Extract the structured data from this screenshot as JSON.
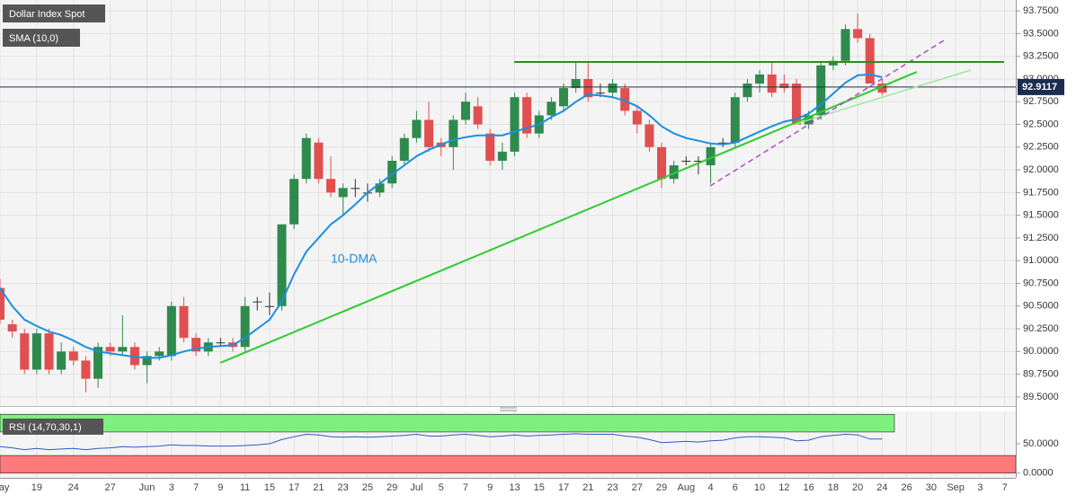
{
  "chart_data": [
    {
      "type": "candlestick",
      "categories": [
        "May",
        null,
        null,
        "19",
        null,
        null,
        "24",
        null,
        null,
        "27",
        null,
        null,
        "Jun",
        null,
        "3",
        null,
        "7",
        null,
        "9",
        null,
        "11",
        null,
        "15",
        null,
        "17",
        null,
        "21",
        null,
        "23",
        null,
        "25",
        null,
        "29",
        null,
        "Jul",
        null,
        "5",
        null,
        "7",
        null,
        "9",
        null,
        "13",
        null,
        "15",
        null,
        "17",
        null,
        "21",
        null,
        "23",
        null,
        "27",
        null,
        "29",
        null,
        "Aug",
        null,
        "4",
        null,
        "6",
        null,
        "10",
        null,
        "12",
        null,
        "16",
        null,
        "18",
        null,
        "20",
        null,
        "24",
        null,
        "26",
        null,
        "30",
        null,
        "Sep",
        null,
        "3",
        null,
        "7"
      ],
      "series": [
        {
          "name": "Dollar Index Spot",
          "up_color": "#2f8a4e",
          "down_color": "#e05050",
          "ohlc": [
            [
              90.7,
              90.8,
              90.3,
              90.35
            ],
            [
              90.3,
              90.35,
              90.15,
              90.22
            ],
            [
              90.2,
              90.25,
              89.75,
              89.8
            ],
            [
              89.8,
              90.25,
              89.75,
              90.2
            ],
            [
              90.2,
              90.25,
              89.75,
              89.8
            ],
            [
              89.8,
              90.1,
              89.75,
              90.0
            ],
            [
              90.0,
              90.05,
              89.85,
              89.9
            ],
            [
              89.9,
              89.95,
              89.55,
              89.7
            ],
            [
              89.7,
              90.1,
              89.6,
              90.05
            ],
            [
              90.05,
              90.1,
              89.95,
              90.0
            ],
            [
              90.0,
              90.4,
              89.95,
              90.05
            ],
            [
              90.05,
              90.1,
              89.8,
              89.85
            ],
            [
              89.85,
              90.0,
              89.65,
              89.95
            ],
            [
              89.95,
              90.05,
              89.9,
              90.0
            ],
            [
              89.95,
              90.55,
              89.9,
              90.5
            ],
            [
              90.5,
              90.6,
              90.1,
              90.15
            ],
            [
              90.15,
              90.2,
              89.95,
              90.0
            ],
            [
              90.0,
              90.15,
              89.95,
              90.1
            ],
            [
              90.1,
              90.15,
              90.05,
              90.1
            ],
            [
              90.1,
              90.15,
              90.0,
              90.05
            ],
            [
              90.05,
              90.6,
              90.0,
              90.5
            ],
            [
              90.55,
              90.6,
              90.45,
              90.55
            ],
            [
              90.5,
              90.65,
              90.4,
              90.5
            ],
            [
              90.5,
              91.4,
              90.45,
              91.4
            ],
            [
              91.4,
              91.95,
              91.35,
              91.9
            ],
            [
              91.9,
              92.4,
              91.85,
              92.35
            ],
            [
              92.3,
              92.35,
              91.85,
              91.9
            ],
            [
              91.9,
              92.15,
              91.7,
              91.75
            ],
            [
              91.7,
              91.85,
              91.5,
              91.8
            ],
            [
              91.8,
              91.9,
              91.7,
              91.8
            ],
            [
              91.75,
              91.85,
              91.65,
              91.75
            ],
            [
              91.75,
              91.9,
              91.7,
              91.85
            ],
            [
              91.85,
              92.15,
              91.8,
              92.1
            ],
            [
              92.1,
              92.4,
              92.05,
              92.35
            ],
            [
              92.35,
              92.65,
              92.3,
              92.55
            ],
            [
              92.55,
              92.75,
              92.2,
              92.25
            ],
            [
              92.3,
              92.35,
              92.15,
              92.25
            ],
            [
              92.25,
              92.6,
              92.0,
              92.55
            ],
            [
              92.55,
              92.85,
              92.5,
              92.75
            ],
            [
              92.7,
              92.8,
              92.45,
              92.5
            ],
            [
              92.4,
              92.45,
              92.05,
              92.1
            ],
            [
              92.1,
              92.3,
              92.0,
              92.2
            ],
            [
              92.2,
              92.85,
              92.15,
              92.8
            ],
            [
              92.8,
              92.85,
              92.35,
              92.4
            ],
            [
              92.4,
              92.65,
              92.35,
              92.6
            ],
            [
              92.6,
              92.8,
              92.55,
              92.75
            ],
            [
              92.7,
              92.95,
              92.65,
              92.9
            ],
            [
              92.9,
              93.18,
              92.85,
              93.0
            ],
            [
              93.0,
              93.18,
              92.75,
              92.8
            ],
            [
              92.85,
              92.95,
              92.8,
              92.85
            ],
            [
              92.85,
              93.0,
              92.8,
              92.95
            ],
            [
              92.9,
              92.95,
              92.6,
              92.65
            ],
            [
              92.65,
              92.7,
              92.4,
              92.5
            ],
            [
              92.5,
              92.55,
              92.2,
              92.25
            ],
            [
              92.25,
              92.3,
              91.8,
              91.9
            ],
            [
              91.9,
              92.1,
              91.85,
              92.05
            ],
            [
              92.1,
              92.15,
              92.05,
              92.1
            ],
            [
              92.1,
              92.15,
              91.95,
              92.1
            ],
            [
              92.05,
              92.3,
              91.85,
              92.25
            ],
            [
              92.3,
              92.35,
              92.25,
              92.3
            ],
            [
              92.3,
              92.85,
              92.25,
              92.8
            ],
            [
              92.8,
              93.0,
              92.75,
              92.95
            ],
            [
              92.95,
              93.1,
              92.85,
              93.05
            ],
            [
              93.05,
              93.18,
              92.8,
              92.85
            ],
            [
              92.95,
              93.05,
              92.85,
              92.9
            ],
            [
              92.95,
              93.0,
              92.5,
              92.5
            ],
            [
              92.5,
              92.65,
              92.45,
              92.6
            ],
            [
              92.6,
              93.2,
              92.55,
              93.15
            ],
            [
              93.15,
              93.25,
              93.1,
              93.2
            ],
            [
              93.2,
              93.6,
              93.15,
              93.55
            ],
            [
              93.55,
              93.72,
              93.4,
              93.45
            ],
            [
              93.45,
              93.5,
              92.95,
              92.95
            ],
            [
              92.95,
              93.0,
              92.82,
              92.85
            ],
            null,
            null,
            null,
            null,
            null,
            null,
            null,
            null,
            null,
            null
          ]
        },
        {
          "name": "SMA (10,0)",
          "color": "#1a8fe0",
          "values": [
            90.7,
            90.5,
            90.35,
            90.28,
            90.22,
            90.18,
            90.12,
            90.05,
            90.0,
            89.98,
            89.96,
            89.94,
            89.93,
            89.93,
            89.96,
            90.0,
            90.03,
            90.05,
            90.06,
            90.07,
            90.15,
            90.25,
            90.35,
            90.55,
            90.85,
            91.1,
            91.25,
            91.4,
            91.5,
            91.62,
            91.75,
            91.85,
            91.95,
            92.05,
            92.15,
            92.22,
            92.28,
            92.33,
            92.36,
            92.38,
            92.38,
            92.38,
            92.42,
            92.46,
            92.5,
            92.58,
            92.65,
            92.75,
            92.83,
            92.82,
            92.8,
            92.76,
            92.7,
            92.6,
            92.48,
            92.4,
            92.35,
            92.32,
            92.29,
            92.28,
            92.3,
            92.36,
            92.42,
            92.48,
            92.53,
            92.56,
            92.62,
            92.72,
            92.84,
            92.96,
            93.04,
            93.05,
            93.02,
            null,
            null,
            null,
            null,
            null,
            null,
            null,
            null,
            null,
            null
          ]
        }
      ],
      "annotation": "10-DMA",
      "last_price": 92.9117,
      "ylim": [
        89.4,
        93.87
      ],
      "yticks": [
        {
          "value": 89.5,
          "label": "89.5000"
        },
        {
          "value": 89.75,
          "label": "89.7500"
        },
        {
          "value": 90.0,
          "label": "90.0000"
        },
        {
          "value": 90.25,
          "label": "90.2500"
        },
        {
          "value": 90.5,
          "label": "90.5000"
        },
        {
          "value": 90.75,
          "label": "90.7500"
        },
        {
          "value": 91.0,
          "label": "91.0000"
        },
        {
          "value": 91.25,
          "label": "91.2500"
        },
        {
          "value": 91.5,
          "label": "91.5000"
        },
        {
          "value": 91.75,
          "label": "91.7500"
        },
        {
          "value": 92.0,
          "label": "92.0000"
        },
        {
          "value": 92.25,
          "label": "92.2500"
        },
        {
          "value": 92.5,
          "label": "92.5000"
        },
        {
          "value": 92.75,
          "label": "92.7500"
        },
        {
          "value": 93.0,
          "label": "93.0000"
        },
        {
          "value": 93.25,
          "label": "93.2500"
        },
        {
          "value": 93.5,
          "label": "93.5000"
        },
        {
          "value": 93.75,
          "label": "93.7500"
        }
      ],
      "grid": true
    },
    {
      "type": "line",
      "title": "RSI (14,70,30,1)",
      "series": [
        {
          "color": "#2a5cc4",
          "values": [
            45,
            43,
            40,
            42,
            40,
            41,
            42,
            40,
            42,
            43,
            45,
            44,
            45,
            46,
            48,
            47,
            47,
            46,
            46,
            46,
            47,
            48,
            50,
            57,
            62,
            66,
            65,
            62,
            61,
            62,
            61,
            62,
            63,
            64,
            66,
            63,
            63,
            65,
            66,
            64,
            62,
            63,
            65,
            63,
            64,
            65,
            66,
            67,
            66,
            66,
            66,
            63,
            61,
            57,
            52,
            53,
            54,
            53,
            55,
            56,
            60,
            62,
            62,
            61,
            60,
            55,
            56,
            62,
            64,
            66,
            65,
            58,
            58,
            null,
            null,
            null,
            null,
            null,
            null,
            null,
            null,
            null,
            null
          ]
        }
      ],
      "bands": [
        {
          "from": 70,
          "to": 100,
          "color": "#7ef07e"
        },
        {
          "from": 0,
          "to": 30,
          "color": "#ff7b7b"
        }
      ],
      "ylim": [
        -8,
        105
      ],
      "yticks": [
        {
          "value": 0,
          "label": "0.0000"
        },
        {
          "value": 50,
          "label": "50.0000"
        }
      ]
    }
  ]
}
